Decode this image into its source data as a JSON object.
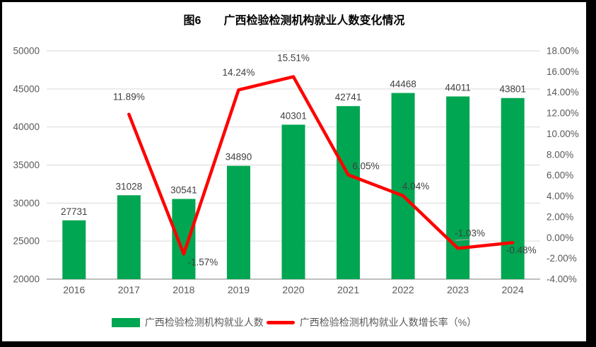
{
  "chart_data": {
    "type": "combo",
    "title": "图6　　广西检验检测机构就业人数变化情况",
    "categories": [
      "2016",
      "2017",
      "2018",
      "2019",
      "2020",
      "2021",
      "2022",
      "2023",
      "2024"
    ],
    "series": [
      {
        "name": "广西检验检测机构就业人数",
        "type": "bar",
        "axis": "left",
        "color": "#00A651",
        "values": [
          27731,
          31028,
          30541,
          34890,
          40301,
          42741,
          44468,
          44011,
          43801
        ],
        "labels": [
          "27731",
          "31028",
          "30541",
          "34890",
          "40301",
          "42741",
          "44468",
          "44011",
          "43801"
        ]
      },
      {
        "name": "广西检验检测机构就业人数增长率（%）",
        "type": "line",
        "axis": "right",
        "color": "#FF0000",
        "values": [
          null,
          11.89,
          -1.57,
          14.24,
          15.51,
          6.05,
          4.04,
          -1.03,
          -0.48
        ],
        "labels": [
          "",
          "11.89%",
          "-1.57%",
          "14.24%",
          "15.51%",
          "6.05%",
          "4.04%",
          "-1.03%",
          "-0.48%"
        ]
      }
    ],
    "left_axis": {
      "min": 20000,
      "max": 50000,
      "step": 5000,
      "tick_labels": [
        "50000",
        "45000",
        "40000",
        "35000",
        "30000",
        "25000",
        "20000"
      ]
    },
    "right_axis": {
      "min": -4,
      "max": 18,
      "step": 2,
      "tick_labels": [
        "18.00%",
        "16.00%",
        "14.00%",
        "12.00%",
        "10.00%",
        "8.00%",
        "6.00%",
        "4.00%",
        "2.00%",
        "0.00%",
        "-2.00%",
        "-4.00%"
      ]
    },
    "grid": true,
    "legend_position": "bottom",
    "colors": {
      "grid": "#D9D9D9",
      "axis_line": "#BFBFBF",
      "tick_text": "#595959",
      "data_label": "#404040",
      "title": "#000000",
      "leader_line": "#A6A6A6",
      "frame_border": "#000000"
    }
  }
}
